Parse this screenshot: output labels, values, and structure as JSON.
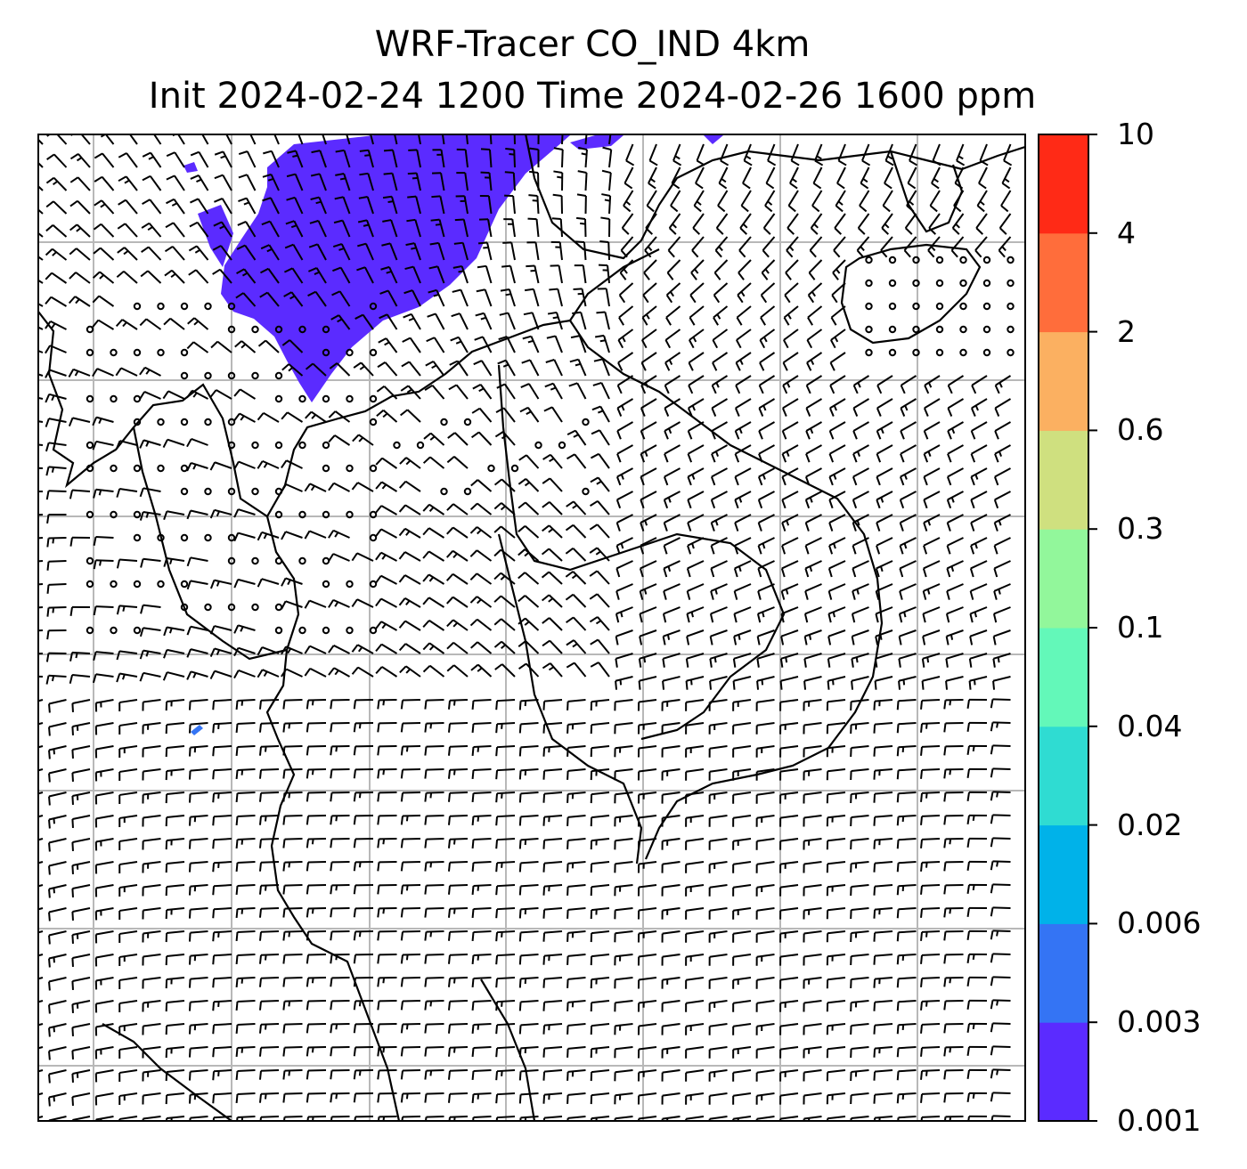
{
  "figure": {
    "title_line1": "WRF-Tracer CO_IND 4km",
    "title_line2": "Init 2024-02-24 1200 Time 2024-02-26 1600 ppm"
  },
  "colorbar": {
    "levels": [
      "0.001",
      "0.003",
      "0.006",
      "0.02",
      "0.04",
      "0.1",
      "0.3",
      "0.6",
      "2",
      "4",
      "10"
    ],
    "colors": [
      "#5b2bff",
      "#3474f4",
      "#00b2e9",
      "#2fdcd2",
      "#63f8b9",
      "#92f79b",
      "#cfe07f",
      "#fbb061",
      "#ff6d3b",
      "#ff2a16"
    ]
  },
  "map": {
    "plume_color": "#5b2bff",
    "grid_color": "#b8b8b8",
    "barb_color": "#000000"
  }
}
